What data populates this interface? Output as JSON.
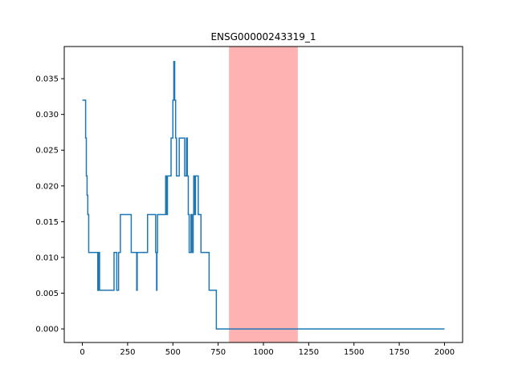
{
  "chart_data": {
    "type": "line",
    "title": "ENSG00000243319_1",
    "xlabel": "",
    "ylabel": "",
    "xlim": [
      -100,
      2100
    ],
    "ylim": [
      -0.0019,
      0.0395
    ],
    "xticks": [
      0,
      250,
      500,
      750,
      1000,
      1250,
      1500,
      1750,
      2000
    ],
    "xtick_labels": [
      "0",
      "250",
      "500",
      "750",
      "1000",
      "1250",
      "1500",
      "1750",
      "2000"
    ],
    "yticks": [
      0.0,
      0.005,
      0.01,
      0.015,
      0.02,
      0.025,
      0.03,
      0.035
    ],
    "ytick_labels": [
      "0.000",
      "0.005",
      "0.010",
      "0.015",
      "0.020",
      "0.025",
      "0.030",
      "0.035"
    ],
    "grid": false,
    "line_color": "#1f77b4",
    "highlight": {
      "x_start": 810,
      "x_end": 1190,
      "color": "#ff7f7f",
      "opacity": 0.6
    },
    "series": [
      {
        "values_x": [
          0,
          18,
          18,
          22,
          22,
          26,
          26,
          30,
          30,
          35,
          35,
          85,
          85,
          87,
          87,
          90,
          90,
          92,
          92,
          95,
          95,
          175,
          175,
          190,
          190,
          195,
          195,
          200,
          200,
          205,
          205,
          210,
          210,
          225,
          225,
          270,
          270,
          300,
          300,
          303,
          303,
          360,
          360,
          405,
          405,
          410,
          410,
          412,
          412,
          415,
          415,
          420,
          420,
          460,
          460,
          465,
          465,
          470,
          470,
          490,
          490,
          500,
          500,
          505,
          505,
          510,
          510,
          515,
          515,
          520,
          520,
          535,
          535,
          565,
          565,
          575,
          575,
          580,
          580,
          585,
          585,
          590,
          590,
          600,
          600,
          605,
          605,
          612,
          612,
          615,
          615,
          620,
          620,
          625,
          625,
          640,
          640,
          645,
          645,
          650,
          650,
          655,
          655,
          700,
          700,
          740,
          740,
          2000
        ],
        "values_y": [
          0.032,
          0.032,
          0.0267,
          0.0267,
          0.0214,
          0.0214,
          0.0187,
          0.0187,
          0.016,
          0.016,
          0.0107,
          0.0107,
          0.0054,
          0.0054,
          0.0107,
          0.0107,
          0.0054,
          0.0054,
          0.0107,
          0.0107,
          0.0054,
          0.0054,
          0.0107,
          0.0107,
          0.0054,
          0.0054,
          0.0054,
          0.0054,
          0.0107,
          0.0107,
          0.0107,
          0.0107,
          0.016,
          0.016,
          0.016,
          0.016,
          0.0107,
          0.0107,
          0.0054,
          0.0054,
          0.0107,
          0.0107,
          0.016,
          0.016,
          0.0107,
          0.0107,
          0.0054,
          0.0054,
          0.0107,
          0.0107,
          0.016,
          0.016,
          0.016,
          0.016,
          0.0214,
          0.0214,
          0.016,
          0.016,
          0.0214,
          0.0214,
          0.0267,
          0.0267,
          0.032,
          0.032,
          0.0374,
          0.0374,
          0.032,
          0.032,
          0.0267,
          0.0267,
          0.0214,
          0.0214,
          0.0267,
          0.0267,
          0.0214,
          0.0214,
          0.0267,
          0.0267,
          0.0214,
          0.0214,
          0.016,
          0.016,
          0.0107,
          0.0107,
          0.016,
          0.016,
          0.0107,
          0.0107,
          0.016,
          0.016,
          0.0214,
          0.0214,
          0.016,
          0.016,
          0.0214,
          0.0214,
          0.016,
          0.016,
          0.016,
          0.016,
          0.016,
          0.016,
          0.0107,
          0.0107,
          0.0054,
          0.0054,
          0.0,
          0.0
        ]
      }
    ]
  }
}
